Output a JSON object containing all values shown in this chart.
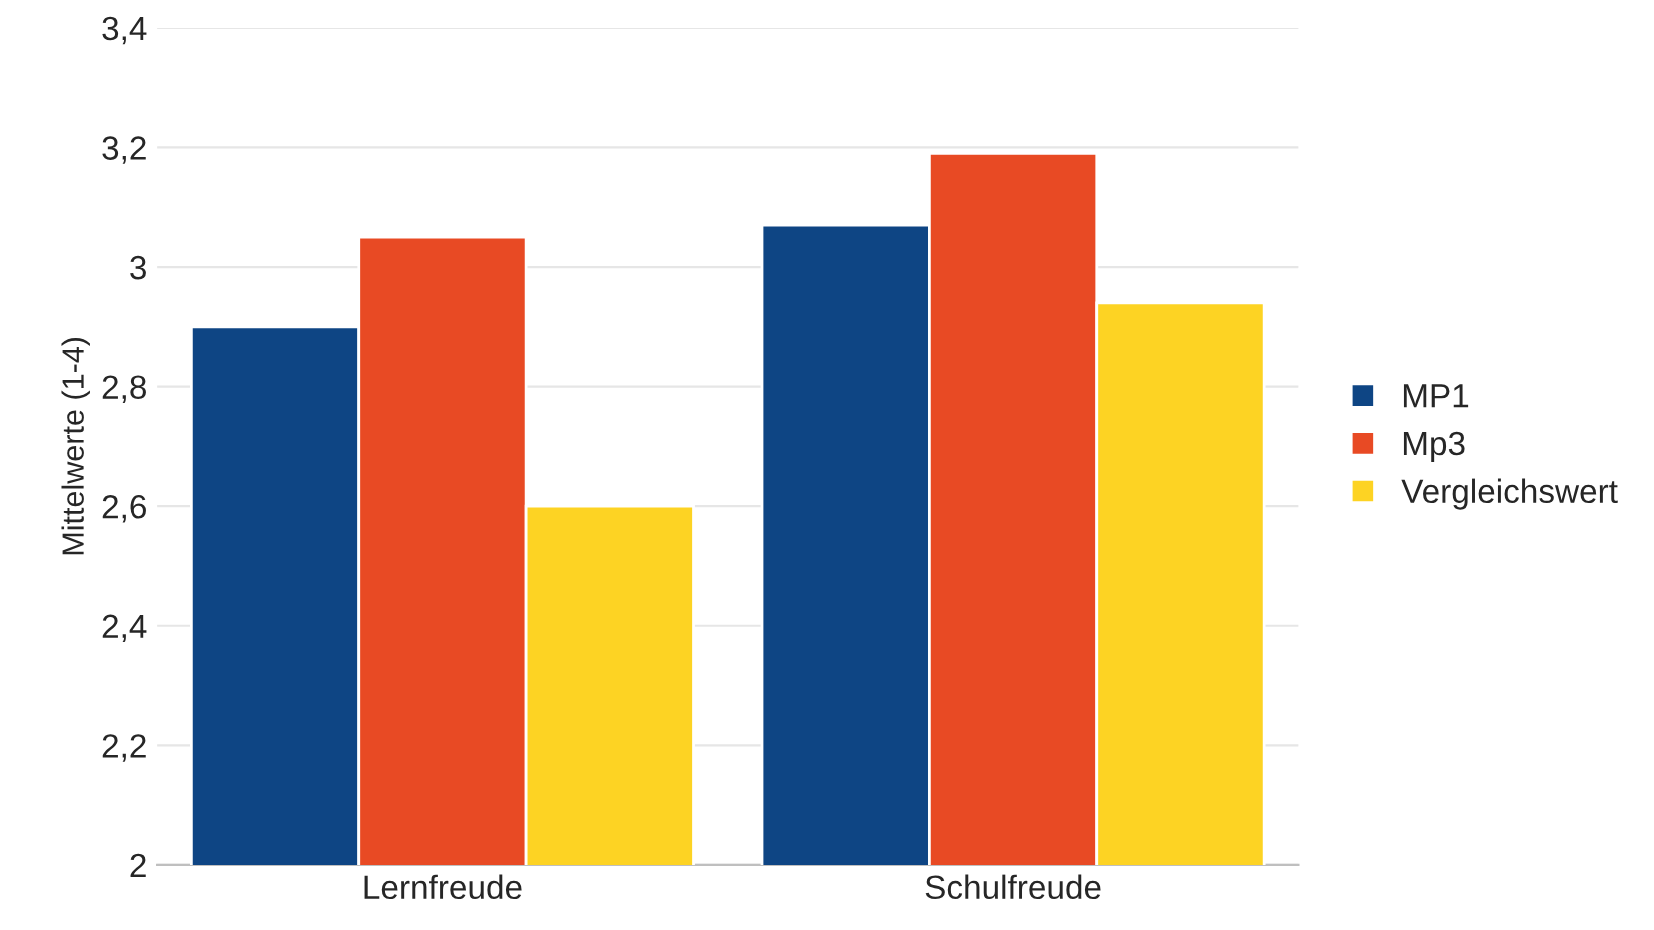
{
  "chart_data": {
    "type": "bar",
    "ylabel": "Mittelwerte (1-4)",
    "categories": [
      "Lernfreude",
      "Schulfreude"
    ],
    "series": [
      {
        "name": "MP1",
        "color": "#0e4584",
        "values": [
          2.9,
          3.07
        ]
      },
      {
        "name": "Mp3",
        "color": "#e84a24",
        "values": [
          3.05,
          3.19
        ]
      },
      {
        "name": "Vergleichswert",
        "color": "#fdd323",
        "values": [
          2.6,
          2.94
        ]
      }
    ],
    "ylim": [
      2,
      3.4
    ],
    "yticks": [
      2,
      {
        "value": 2.2,
        "label": "2,2"
      },
      {
        "value": 2.4,
        "label": "2,4"
      },
      {
        "value": 2.6,
        "label": "2,6"
      },
      {
        "value": 2.8,
        "label": "2,8"
      },
      3,
      {
        "value": 3.2,
        "label": "3,2"
      },
      {
        "value": 3.4,
        "label": "3,4"
      }
    ],
    "grid": "y",
    "legend": "right"
  }
}
